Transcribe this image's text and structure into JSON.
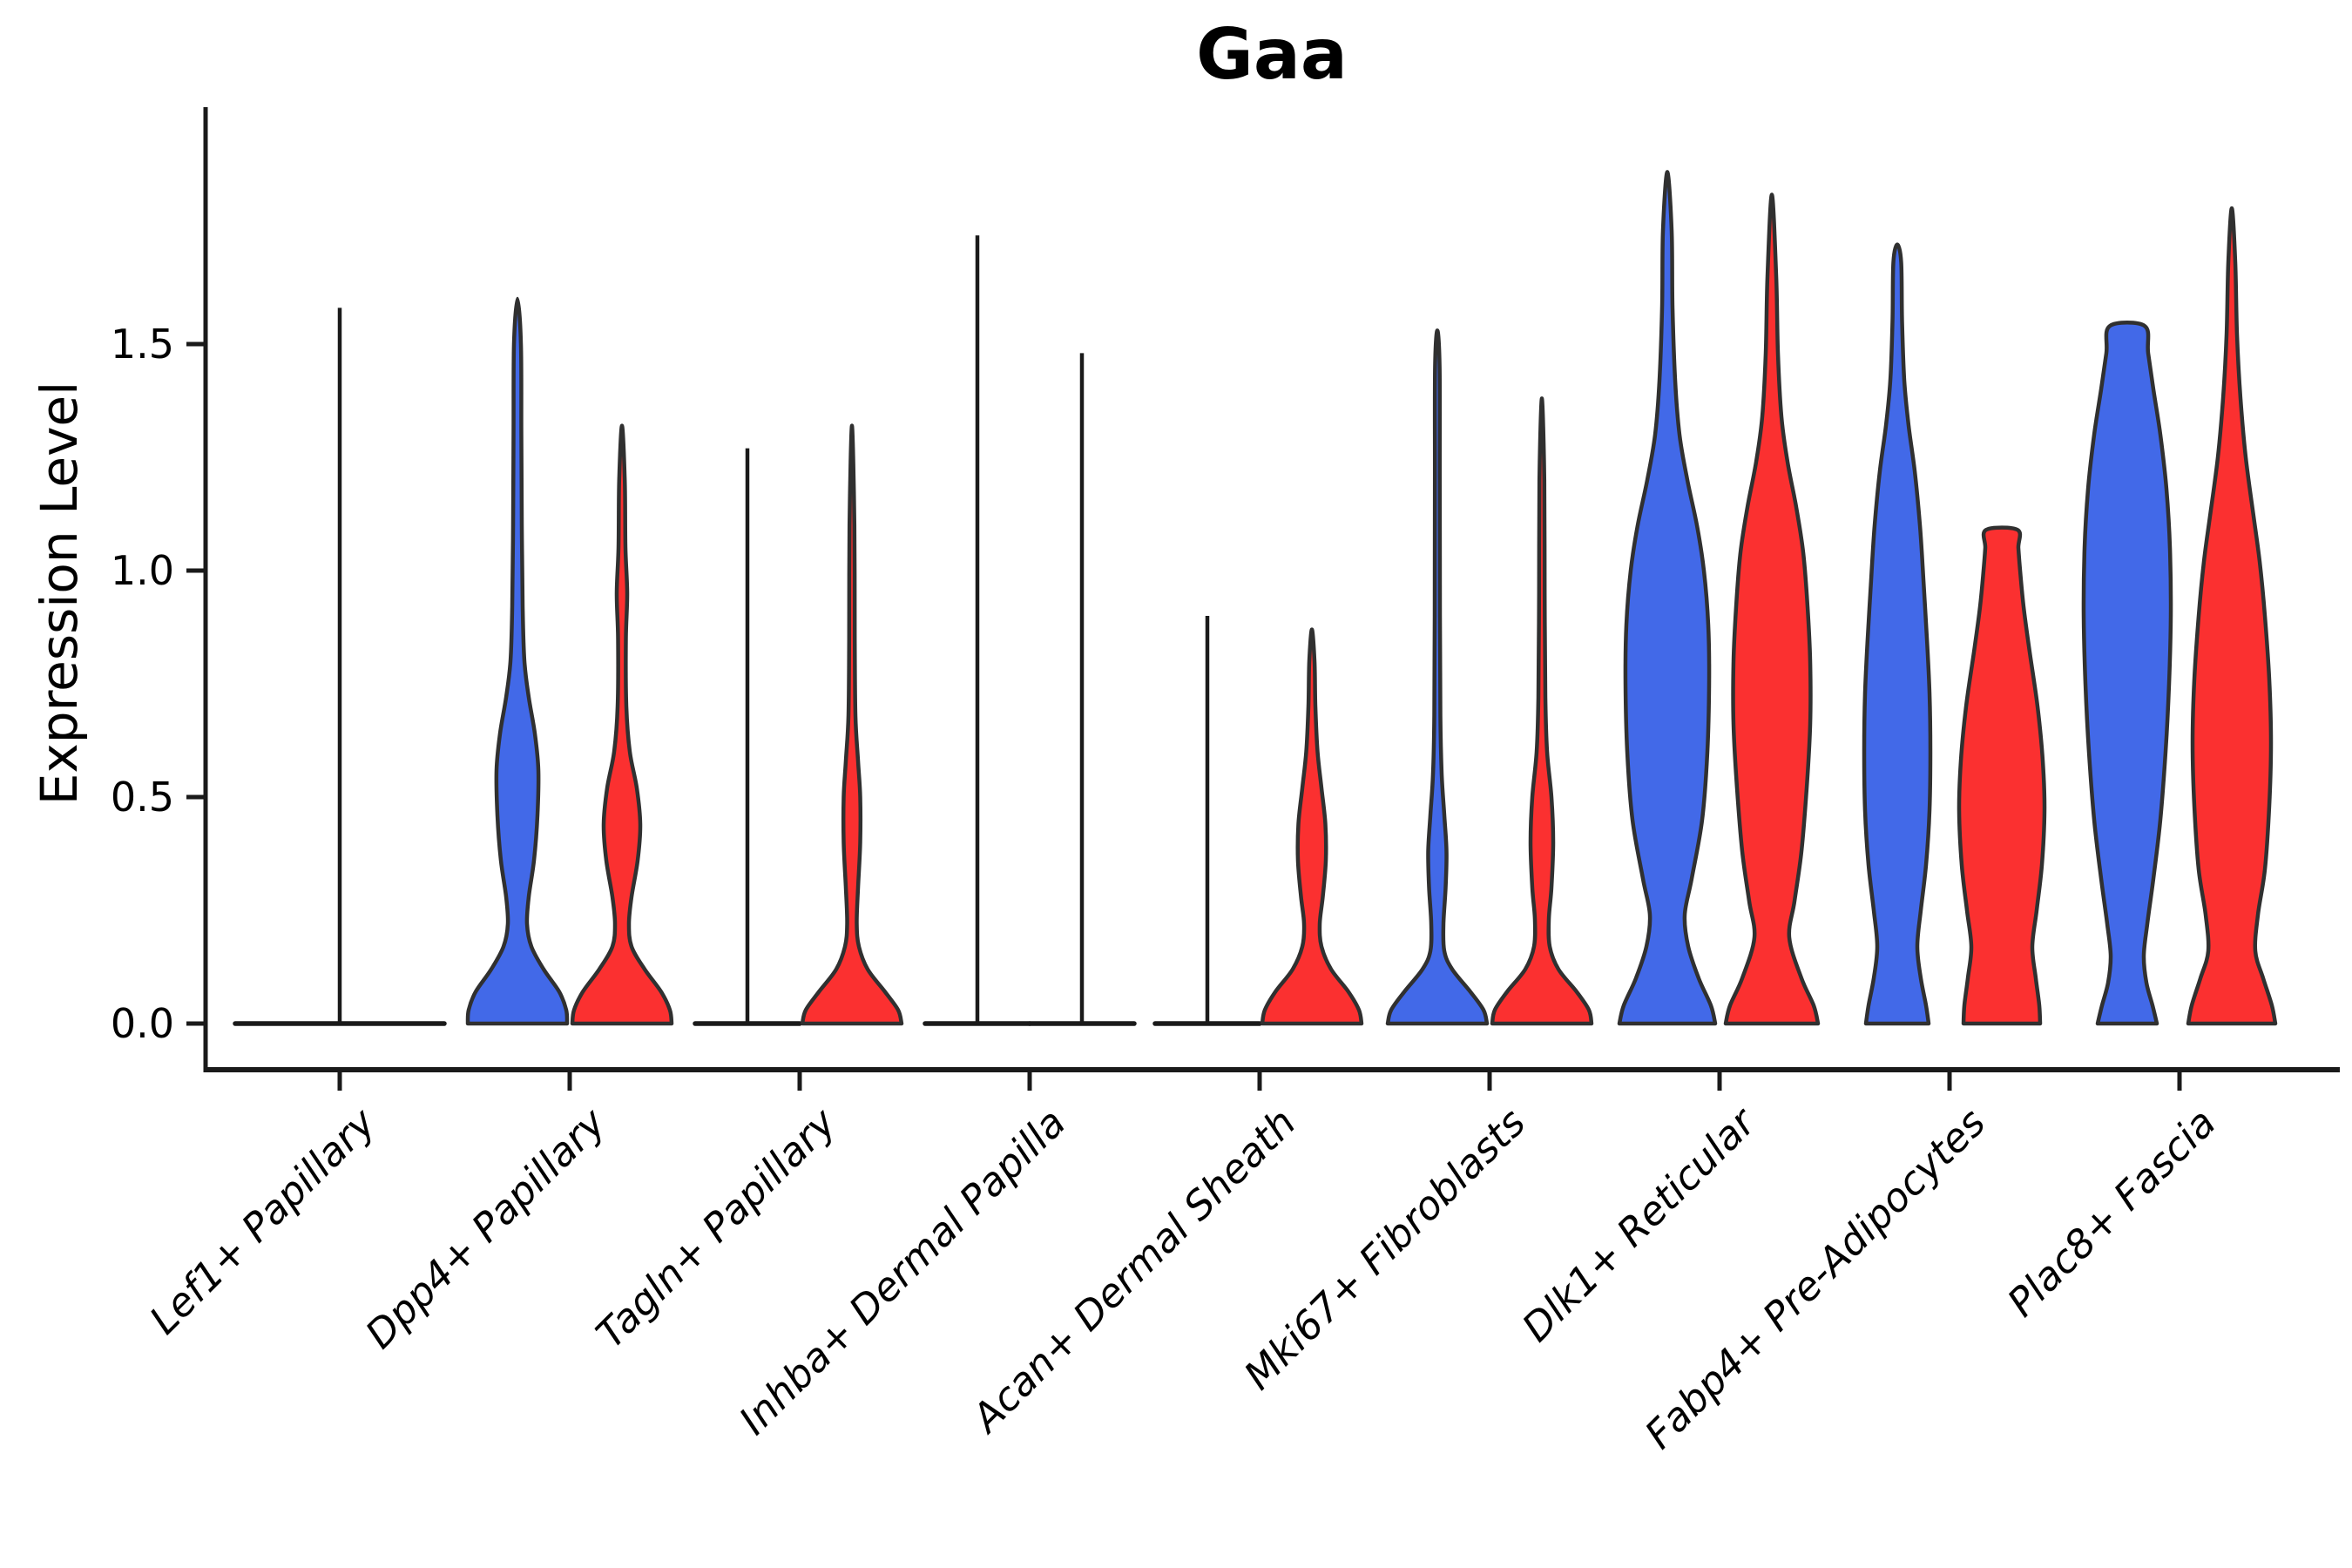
{
  "chart_data": {
    "type": "violin",
    "title": "Gaa",
    "ylabel": "Expression Level",
    "xlabel": "",
    "ytick_labels": [
      "0.0",
      "0.5",
      "1.0",
      "1.5"
    ],
    "ytick_values": [
      0.0,
      0.5,
      1.0,
      1.5
    ],
    "ylim": [
      -0.05,
      2.03
    ],
    "grid": false,
    "legend_position": "none",
    "x_label_rotation_deg": 45,
    "categories": [
      "Lef1+ Papillary",
      "Dpp4+ Papillary",
      "Tagln+ Papillary",
      "Inhba+ Dermal Papilla",
      "Acan+ Dermal Sheath",
      "Mki67+ Fibroblasts",
      "Dlk1+ Reticular",
      "Fabp4+ Pre-Adipocytes",
      "Plac8+ Fascia"
    ],
    "colors": {
      "blue_fill": "#4269E8",
      "red_fill": "#FB3030",
      "outline": "#303030",
      "axis": "#1a1a1a",
      "text": "#000000",
      "background": "#ffffff"
    },
    "series": [
      {
        "name": "blue",
        "fill_key": "blue_fill",
        "violins": [
          {
            "category": "Lef1+ Papillary",
            "max": 1.58,
            "shape": "collapsed",
            "halfwidth": 120,
            "offset": 0
          },
          {
            "category": "Dpp4+ Papillary",
            "max": 1.6,
            "shape": "density",
            "flat_top": false,
            "offset": -60,
            "profile": [
              [
                0,
                57
              ],
              [
                0.03,
                56
              ],
              [
                0.07,
                48
              ],
              [
                0.12,
                30
              ],
              [
                0.17,
                16
              ],
              [
                0.22,
                11
              ],
              [
                0.28,
                13
              ],
              [
                0.36,
                19
              ],
              [
                0.46,
                23
              ],
              [
                0.56,
                24
              ],
              [
                0.64,
                20
              ],
              [
                0.72,
                13
              ],
              [
                0.8,
                8
              ],
              [
                0.92,
                6
              ],
              [
                1.1,
                5
              ],
              [
                1.3,
                4.5
              ],
              [
                1.5,
                4
              ],
              [
                1.6,
                0
              ]
            ]
          },
          {
            "category": "Tagln+ Papillary",
            "max": 1.27,
            "shape": "collapsed",
            "halfwidth": 60,
            "offset": -60
          },
          {
            "category": "Inhba+ Dermal Papilla",
            "max": 1.74,
            "shape": "collapsed",
            "halfwidth": 60,
            "offset": -60
          },
          {
            "category": "Acan+ Dermal Sheath",
            "max": 0.9,
            "shape": "collapsed",
            "halfwidth": 60,
            "offset": -60
          },
          {
            "category": "Mki67+ Fibroblasts",
            "max": 1.53,
            "shape": "density",
            "flat_top": false,
            "offset": -60,
            "profile": [
              [
                0,
                57
              ],
              [
                0.03,
                53
              ],
              [
                0.07,
                38
              ],
              [
                0.12,
                17
              ],
              [
                0.16,
                8
              ],
              [
                0.22,
                7
              ],
              [
                0.3,
                9.5
              ],
              [
                0.38,
                10.5
              ],
              [
                0.46,
                8
              ],
              [
                0.55,
                5
              ],
              [
                0.68,
                3.5
              ],
              [
                0.9,
                3
              ],
              [
                1.2,
                2.8
              ],
              [
                1.45,
                2.6
              ],
              [
                1.53,
                0
              ]
            ]
          },
          {
            "category": "Dlk1+ Reticular",
            "max": 1.88,
            "shape": "density",
            "flat_top": false,
            "offset": -60,
            "profile": [
              [
                0,
                55
              ],
              [
                0.04,
                50
              ],
              [
                0.1,
                36
              ],
              [
                0.17,
                24
              ],
              [
                0.24,
                20
              ],
              [
                0.32,
                28
              ],
              [
                0.45,
                40
              ],
              [
                0.6,
                46
              ],
              [
                0.75,
                48
              ],
              [
                0.88,
                47
              ],
              [
                1.0,
                42
              ],
              [
                1.1,
                34
              ],
              [
                1.2,
                23
              ],
              [
                1.3,
                14
              ],
              [
                1.42,
                9
              ],
              [
                1.58,
                6
              ],
              [
                1.75,
                5
              ],
              [
                1.88,
                0
              ]
            ]
          },
          {
            "category": "Fabp4+ Pre-Adipocytes",
            "max": 1.72,
            "shape": "density",
            "flat_top": false,
            "offset": -60,
            "profile": [
              [
                0,
                36
              ],
              [
                0.04,
                33
              ],
              [
                0.1,
                27
              ],
              [
                0.17,
                23
              ],
              [
                0.25,
                27
              ],
              [
                0.35,
                33
              ],
              [
                0.47,
                37
              ],
              [
                0.6,
                38
              ],
              [
                0.73,
                37
              ],
              [
                0.85,
                34
              ],
              [
                0.98,
                30
              ],
              [
                1.1,
                26
              ],
              [
                1.22,
                20
              ],
              [
                1.32,
                13
              ],
              [
                1.42,
                8
              ],
              [
                1.55,
                5.5
              ],
              [
                1.68,
                4.5
              ],
              [
                1.72,
                0
              ]
            ]
          },
          {
            "category": "Plac8+ Fascia",
            "max": 1.54,
            "shape": "density",
            "flat_top": true,
            "offset": -60,
            "profile": [
              [
                0,
                34
              ],
              [
                0.04,
                29
              ],
              [
                0.09,
                22
              ],
              [
                0.15,
                19
              ],
              [
                0.22,
                23
              ],
              [
                0.32,
                30
              ],
              [
                0.45,
                38
              ],
              [
                0.6,
                44
              ],
              [
                0.75,
                48
              ],
              [
                0.9,
                50
              ],
              [
                1.05,
                49
              ],
              [
                1.18,
                45
              ],
              [
                1.3,
                38
              ],
              [
                1.4,
                30
              ],
              [
                1.48,
                24
              ],
              [
                1.54,
                20
              ]
            ]
          }
        ]
      },
      {
        "name": "red",
        "fill_key": "red_fill",
        "violins": [
          null,
          {
            "category": "Dpp4+ Papillary",
            "max": 1.32,
            "shape": "density",
            "flat_top": false,
            "offset": 60,
            "profile": [
              [
                0,
                57
              ],
              [
                0.03,
                55
              ],
              [
                0.07,
                45
              ],
              [
                0.12,
                26
              ],
              [
                0.17,
                11
              ],
              [
                0.22,
                8
              ],
              [
                0.28,
                11
              ],
              [
                0.36,
                18
              ],
              [
                0.44,
                21
              ],
              [
                0.52,
                17
              ],
              [
                0.6,
                9
              ],
              [
                0.7,
                5
              ],
              [
                0.85,
                4.5
              ],
              [
                0.95,
                6
              ],
              [
                1.05,
                4
              ],
              [
                1.2,
                3.2
              ],
              [
                1.32,
                0
              ]
            ]
          },
          {
            "category": "Tagln+ Papillary",
            "max": 1.32,
            "shape": "density",
            "flat_top": false,
            "offset": 60,
            "profile": [
              [
                0,
                57
              ],
              [
                0.03,
                53
              ],
              [
                0.07,
                38
              ],
              [
                0.12,
                18
              ],
              [
                0.17,
                8
              ],
              [
                0.22,
                5.5
              ],
              [
                0.3,
                7
              ],
              [
                0.4,
                9.5
              ],
              [
                0.5,
                9.5
              ],
              [
                0.58,
                7
              ],
              [
                0.68,
                4
              ],
              [
                0.85,
                3.2
              ],
              [
                1.1,
                2.8
              ],
              [
                1.32,
                0
              ]
            ]
          },
          {
            "category": "Inhba+ Dermal Papilla",
            "max": 1.48,
            "shape": "collapsed",
            "halfwidth": 60,
            "offset": 60
          },
          {
            "category": "Acan+ Dermal Sheath",
            "max": 0.87,
            "shape": "density",
            "flat_top": false,
            "offset": 60,
            "profile": [
              [
                0,
                57
              ],
              [
                0.03,
                54
              ],
              [
                0.07,
                42
              ],
              [
                0.12,
                22
              ],
              [
                0.17,
                11
              ],
              [
                0.22,
                9
              ],
              [
                0.28,
                12.5
              ],
              [
                0.36,
                16
              ],
              [
                0.44,
                15.5
              ],
              [
                0.52,
                11
              ],
              [
                0.6,
                6.5
              ],
              [
                0.7,
                4
              ],
              [
                0.8,
                3
              ],
              [
                0.87,
                0
              ]
            ]
          },
          {
            "category": "Mki67+ Fibroblasts",
            "max": 1.38,
            "shape": "density",
            "flat_top": false,
            "offset": 60,
            "profile": [
              [
                0,
                57
              ],
              [
                0.03,
                54
              ],
              [
                0.07,
                40
              ],
              [
                0.12,
                19
              ],
              [
                0.17,
                9
              ],
              [
                0.23,
                8
              ],
              [
                0.3,
                11
              ],
              [
                0.4,
                13
              ],
              [
                0.5,
                11
              ],
              [
                0.6,
                6
              ],
              [
                0.72,
                4
              ],
              [
                0.95,
                3.2
              ],
              [
                1.2,
                2.8
              ],
              [
                1.38,
                0
              ]
            ]
          },
          {
            "category": "Dlk1+ Reticular",
            "max": 1.83,
            "shape": "density",
            "flat_top": false,
            "offset": 60,
            "profile": [
              [
                0,
                53
              ],
              [
                0.04,
                48
              ],
              [
                0.1,
                34
              ],
              [
                0.19,
                20
              ],
              [
                0.27,
                26
              ],
              [
                0.38,
                34
              ],
              [
                0.52,
                40
              ],
              [
                0.66,
                44
              ],
              [
                0.8,
                44
              ],
              [
                0.92,
                41
              ],
              [
                1.04,
                36
              ],
              [
                1.14,
                28
              ],
              [
                1.24,
                18
              ],
              [
                1.34,
                11
              ],
              [
                1.48,
                7
              ],
              [
                1.65,
                5
              ],
              [
                1.83,
                0
              ]
            ]
          },
          {
            "category": "Fabp4+ Pre-Adipocytes",
            "max": 1.09,
            "shape": "density",
            "flat_top": true,
            "offset": 60,
            "profile": [
              [
                0,
                44
              ],
              [
                0.04,
                43
              ],
              [
                0.1,
                39
              ],
              [
                0.17,
                35
              ],
              [
                0.25,
                40
              ],
              [
                0.35,
                46
              ],
              [
                0.47,
                49
              ],
              [
                0.58,
                47
              ],
              [
                0.7,
                41
              ],
              [
                0.82,
                32
              ],
              [
                0.92,
                25
              ],
              [
                1.0,
                21
              ],
              [
                1.05,
                19
              ],
              [
                1.09,
                18
              ]
            ]
          },
          {
            "category": "Plac8+ Fascia",
            "max": 1.8,
            "shape": "density",
            "flat_top": false,
            "offset": 60,
            "profile": [
              [
                0,
                50
              ],
              [
                0.04,
                46
              ],
              [
                0.1,
                36
              ],
              [
                0.16,
                27
              ],
              [
                0.24,
                30
              ],
              [
                0.34,
                38
              ],
              [
                0.48,
                43
              ],
              [
                0.62,
                45
              ],
              [
                0.76,
                43
              ],
              [
                0.9,
                38
              ],
              [
                1.02,
                32
              ],
              [
                1.12,
                25
              ],
              [
                1.25,
                16
              ],
              [
                1.38,
                10
              ],
              [
                1.52,
                6
              ],
              [
                1.68,
                4
              ],
              [
                1.8,
                0
              ]
            ]
          }
        ]
      }
    ]
  }
}
